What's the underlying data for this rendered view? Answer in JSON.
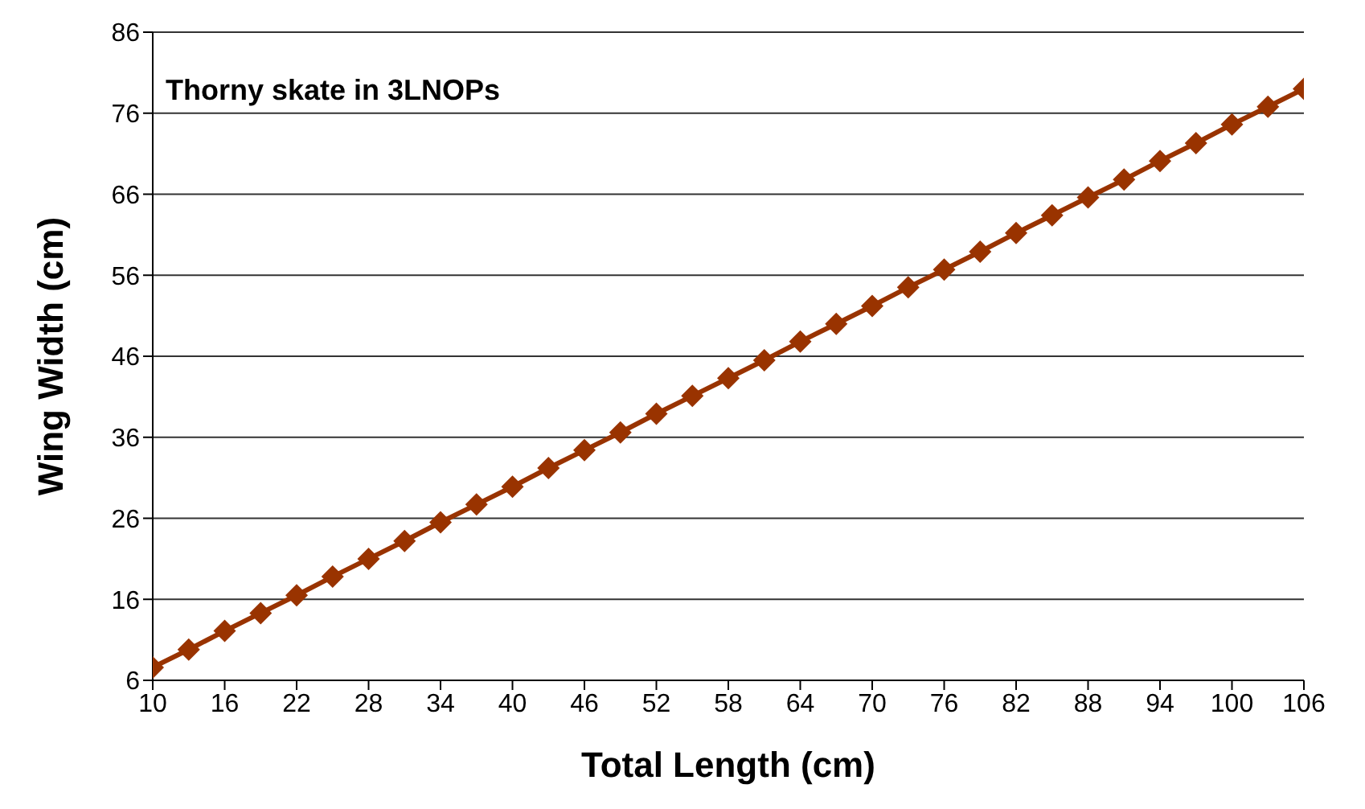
{
  "chart_data": {
    "type": "line",
    "title": "Thorny skate in 3LNOPs",
    "xlabel": "Total Length (cm)",
    "ylabel": "Wing Width (cm)",
    "x": [
      10,
      13,
      16,
      19,
      22,
      25,
      28,
      31,
      34,
      37,
      40,
      43,
      46,
      49,
      52,
      55,
      58,
      61,
      64,
      67,
      70,
      73,
      76,
      79,
      82,
      85,
      88,
      91,
      94,
      97,
      100,
      103,
      106
    ],
    "series": [
      {
        "color": "#993300",
        "values": [
          7.6,
          9.8,
          12.1,
          14.3,
          16.5,
          18.8,
          21.0,
          23.2,
          25.5,
          27.7,
          29.9,
          32.2,
          34.4,
          36.6,
          38.9,
          41.1,
          43.3,
          45.5,
          47.8,
          50.0,
          52.2,
          54.5,
          56.7,
          58.9,
          61.2,
          63.4,
          65.6,
          67.8,
          70.1,
          72.3,
          74.6,
          76.8,
          79.0
        ]
      }
    ],
    "xlim": [
      10,
      106
    ],
    "xticks": [
      10,
      16,
      22,
      28,
      34,
      40,
      46,
      52,
      58,
      64,
      70,
      76,
      82,
      88,
      94,
      100,
      106
    ],
    "ylim": [
      6,
      86
    ],
    "yticks": [
      6,
      16,
      26,
      36,
      46,
      56,
      66,
      76,
      86
    ],
    "grid": "y",
    "marker": "diamond",
    "line_style": "solid"
  }
}
